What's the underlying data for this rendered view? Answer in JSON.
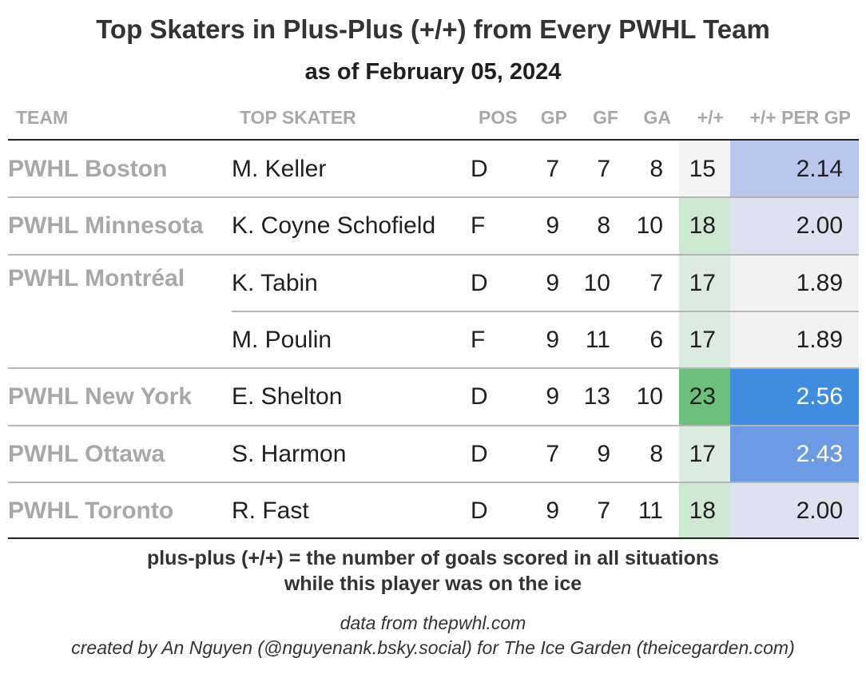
{
  "title": "Top Skaters in Plus-Plus (+/+) from Every PWHL Team",
  "subtitle": "as of February 05, 2024",
  "chart_data": {
    "type": "table",
    "columns": [
      "TEAM",
      "TOP SKATER",
      "POS",
      "GP",
      "GF",
      "GA",
      "+/+",
      "+/+ PER GP"
    ],
    "rows": [
      {
        "team": "PWHL Boston",
        "skater": "M. Keller",
        "pos": "D",
        "gp": "7",
        "gf": "7",
        "ga": "8",
        "pp": "15",
        "per_gp": "2.14",
        "pp_color": "#f3f3f3",
        "per_gp_color": "#b9c7ec",
        "per_gp_text": "#1f1f1f"
      },
      {
        "team": "PWHL Minnesota",
        "skater": "K. Coyne Schofield",
        "pos": "F",
        "gp": "9",
        "gf": "8",
        "ga": "10",
        "pp": "18",
        "per_gp": "2.00",
        "pp_color": "#cfe8d2",
        "per_gp_color": "#dde2f1",
        "per_gp_text": "#1f1f1f"
      },
      {
        "team": "PWHL Montréal",
        "skater": "K. Tabin",
        "pos": "D",
        "gp": "9",
        "gf": "10",
        "ga": "7",
        "pp": "17",
        "per_gp": "1.89",
        "pp_color": "#dcebdf",
        "per_gp_color": "#f2f2f2",
        "per_gp_text": "#1f1f1f"
      },
      {
        "team": "",
        "skater": "M. Poulin",
        "pos": "F",
        "gp": "9",
        "gf": "11",
        "ga": "6",
        "pp": "17",
        "per_gp": "1.89",
        "pp_color": "#dcebdf",
        "per_gp_color": "#f2f2f2",
        "per_gp_text": "#1f1f1f"
      },
      {
        "team": "PWHL New York",
        "skater": "E. Shelton",
        "pos": "D",
        "gp": "9",
        "gf": "13",
        "ga": "10",
        "pp": "23",
        "per_gp": "2.56",
        "pp_color": "#6dbf7c",
        "per_gp_color": "#3f8ce0",
        "per_gp_text": "#ffffff"
      },
      {
        "team": "PWHL Ottawa",
        "skater": "S. Harmon",
        "pos": "D",
        "gp": "7",
        "gf": "9",
        "ga": "8",
        "pp": "17",
        "per_gp": "2.43",
        "pp_color": "#dcebdf",
        "per_gp_color": "#6c9be3",
        "per_gp_text": "#ffffff"
      },
      {
        "team": "PWHL Toronto",
        "skater": "R. Fast",
        "pos": "D",
        "gp": "9",
        "gf": "7",
        "ga": "11",
        "pp": "18",
        "per_gp": "2.00",
        "pp_color": "#cfe8d2",
        "per_gp_color": "#dde2f1",
        "per_gp_text": "#1f1f1f"
      }
    ]
  },
  "footnote": {
    "line1": "plus-plus (+/+) = the number of goals scored in all situations",
    "line2": "while this player was on the ice"
  },
  "credits": {
    "source": "data from thepwhl.com",
    "creator": "created by An Nguyen (@nguyenank.bsky.social) for The Ice Garden (theicegarden.com)"
  }
}
